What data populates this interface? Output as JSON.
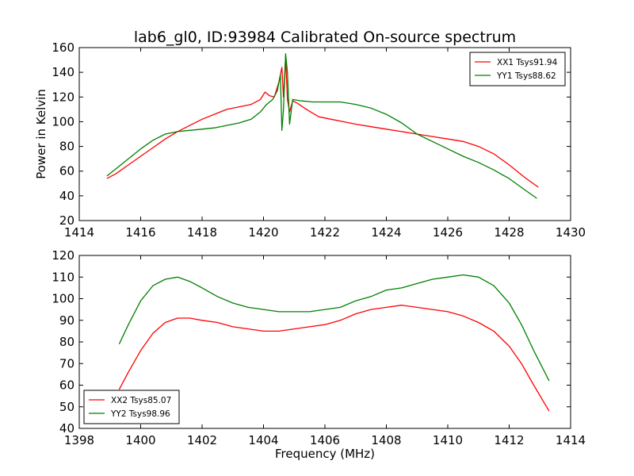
{
  "title": "lab6_gl0, ID:93984 Calibrated On-source spectrum",
  "chart_data": [
    {
      "type": "line",
      "ylabel": "Power in Kelvin",
      "xlabel": "",
      "xlim": [
        1414,
        1430
      ],
      "ylim": [
        20,
        160
      ],
      "xticks": [
        1414,
        1416,
        1418,
        1420,
        1422,
        1424,
        1426,
        1428,
        1430
      ],
      "yticks": [
        20,
        40,
        60,
        80,
        100,
        120,
        140,
        160
      ],
      "legend": "top-right",
      "series": [
        {
          "name": "XX1 Tsys91.94",
          "color": "#ff0000",
          "points": [
            [
              1414.9,
              54
            ],
            [
              1415.2,
              58
            ],
            [
              1415.6,
              65
            ],
            [
              1416.0,
              72
            ],
            [
              1416.4,
              79
            ],
            [
              1416.8,
              86
            ],
            [
              1417.2,
              92
            ],
            [
              1417.6,
              97
            ],
            [
              1418.0,
              102
            ],
            [
              1418.4,
              106
            ],
            [
              1418.8,
              110
            ],
            [
              1419.2,
              112
            ],
            [
              1419.6,
              114
            ],
            [
              1419.9,
              118
            ],
            [
              1420.05,
              124
            ],
            [
              1420.2,
              121
            ],
            [
              1420.35,
              120
            ],
            [
              1420.5,
              132
            ],
            [
              1420.6,
              144
            ],
            [
              1420.65,
              120
            ],
            [
              1420.72,
              152
            ],
            [
              1420.78,
              118
            ],
            [
              1420.85,
              108
            ],
            [
              1420.95,
              117
            ],
            [
              1421.1,
              115
            ],
            [
              1421.4,
              110
            ],
            [
              1421.8,
              104
            ],
            [
              1422.2,
              102
            ],
            [
              1422.6,
              100
            ],
            [
              1423.0,
              98
            ],
            [
              1423.5,
              96
            ],
            [
              1424.0,
              94
            ],
            [
              1424.5,
              92
            ],
            [
              1425.0,
              90
            ],
            [
              1425.5,
              88
            ],
            [
              1426.0,
              86
            ],
            [
              1426.5,
              84
            ],
            [
              1427.0,
              80
            ],
            [
              1427.5,
              74
            ],
            [
              1428.0,
              65
            ],
            [
              1428.5,
              55
            ],
            [
              1428.95,
              47
            ]
          ]
        },
        {
          "name": "YY1 Tsys88.62",
          "color": "#008000",
          "points": [
            [
              1414.9,
              56
            ],
            [
              1415.2,
              62
            ],
            [
              1415.6,
              70
            ],
            [
              1416.0,
              78
            ],
            [
              1416.4,
              85
            ],
            [
              1416.8,
              90
            ],
            [
              1417.2,
              92
            ],
            [
              1417.6,
              93
            ],
            [
              1418.0,
              94
            ],
            [
              1418.4,
              95
            ],
            [
              1418.8,
              97
            ],
            [
              1419.2,
              99
            ],
            [
              1419.6,
              102
            ],
            [
              1419.9,
              108
            ],
            [
              1420.1,
              114
            ],
            [
              1420.3,
              118
            ],
            [
              1420.45,
              125
            ],
            [
              1420.55,
              138
            ],
            [
              1420.6,
              93
            ],
            [
              1420.65,
              110
            ],
            [
              1420.72,
              155
            ],
            [
              1420.78,
              140
            ],
            [
              1420.85,
              98
            ],
            [
              1420.95,
              118
            ],
            [
              1421.2,
              117
            ],
            [
              1421.6,
              116
            ],
            [
              1422.0,
              116
            ],
            [
              1422.5,
              116
            ],
            [
              1423.0,
              114
            ],
            [
              1423.5,
              111
            ],
            [
              1424.0,
              106
            ],
            [
              1424.5,
              99
            ],
            [
              1425.0,
              90
            ],
            [
              1425.5,
              84
            ],
            [
              1426.0,
              78
            ],
            [
              1426.5,
              72
            ],
            [
              1427.0,
              67
            ],
            [
              1427.5,
              61
            ],
            [
              1428.0,
              54
            ],
            [
              1428.5,
              45
            ],
            [
              1428.9,
              38
            ]
          ]
        }
      ]
    },
    {
      "type": "line",
      "ylabel": "",
      "xlabel": "Frequency (MHz)",
      "xlim": [
        1398,
        1414
      ],
      "ylim": [
        40,
        120
      ],
      "xticks": [
        1398,
        1400,
        1402,
        1404,
        1406,
        1408,
        1410,
        1412,
        1414
      ],
      "yticks": [
        40,
        50,
        60,
        70,
        80,
        90,
        100,
        110,
        120
      ],
      "legend": "bottom-left",
      "series": [
        {
          "name": "XX2 Tsys85.07",
          "color": "#ff0000",
          "points": [
            [
              1399.3,
              58
            ],
            [
              1399.6,
              66
            ],
            [
              1400.0,
              76
            ],
            [
              1400.4,
              84
            ],
            [
              1400.8,
              89
            ],
            [
              1401.2,
              91
            ],
            [
              1401.6,
              91
            ],
            [
              1402.0,
              90
            ],
            [
              1402.5,
              89
            ],
            [
              1403.0,
              87
            ],
            [
              1403.5,
              86
            ],
            [
              1404.0,
              85
            ],
            [
              1404.5,
              85
            ],
            [
              1405.0,
              86
            ],
            [
              1405.5,
              87
            ],
            [
              1406.0,
              88
            ],
            [
              1406.5,
              90
            ],
            [
              1407.0,
              93
            ],
            [
              1407.5,
              95
            ],
            [
              1408.0,
              96
            ],
            [
              1408.5,
              97
            ],
            [
              1409.0,
              96
            ],
            [
              1409.5,
              95
            ],
            [
              1410.0,
              94
            ],
            [
              1410.5,
              92
            ],
            [
              1411.0,
              89
            ],
            [
              1411.5,
              85
            ],
            [
              1412.0,
              78
            ],
            [
              1412.4,
              70
            ],
            [
              1412.8,
              60
            ],
            [
              1413.3,
              48
            ]
          ]
        },
        {
          "name": "YY2 Tsys98.96",
          "color": "#008000",
          "points": [
            [
              1399.3,
              79
            ],
            [
              1399.6,
              88
            ],
            [
              1400.0,
              99
            ],
            [
              1400.4,
              106
            ],
            [
              1400.8,
              109
            ],
            [
              1401.2,
              110
            ],
            [
              1401.6,
              108
            ],
            [
              1402.0,
              105
            ],
            [
              1402.5,
              101
            ],
            [
              1403.0,
              98
            ],
            [
              1403.5,
              96
            ],
            [
              1404.0,
              95
            ],
            [
              1404.5,
              94
            ],
            [
              1405.0,
              94
            ],
            [
              1405.5,
              94
            ],
            [
              1406.0,
              95
            ],
            [
              1406.5,
              96
            ],
            [
              1407.0,
              99
            ],
            [
              1407.5,
              101
            ],
            [
              1408.0,
              104
            ],
            [
              1408.5,
              105
            ],
            [
              1409.0,
              107
            ],
            [
              1409.5,
              109
            ],
            [
              1410.0,
              110
            ],
            [
              1410.5,
              111
            ],
            [
              1411.0,
              110
            ],
            [
              1411.5,
              106
            ],
            [
              1412.0,
              98
            ],
            [
              1412.4,
              88
            ],
            [
              1412.8,
              76
            ],
            [
              1413.3,
              62
            ]
          ]
        }
      ]
    }
  ]
}
